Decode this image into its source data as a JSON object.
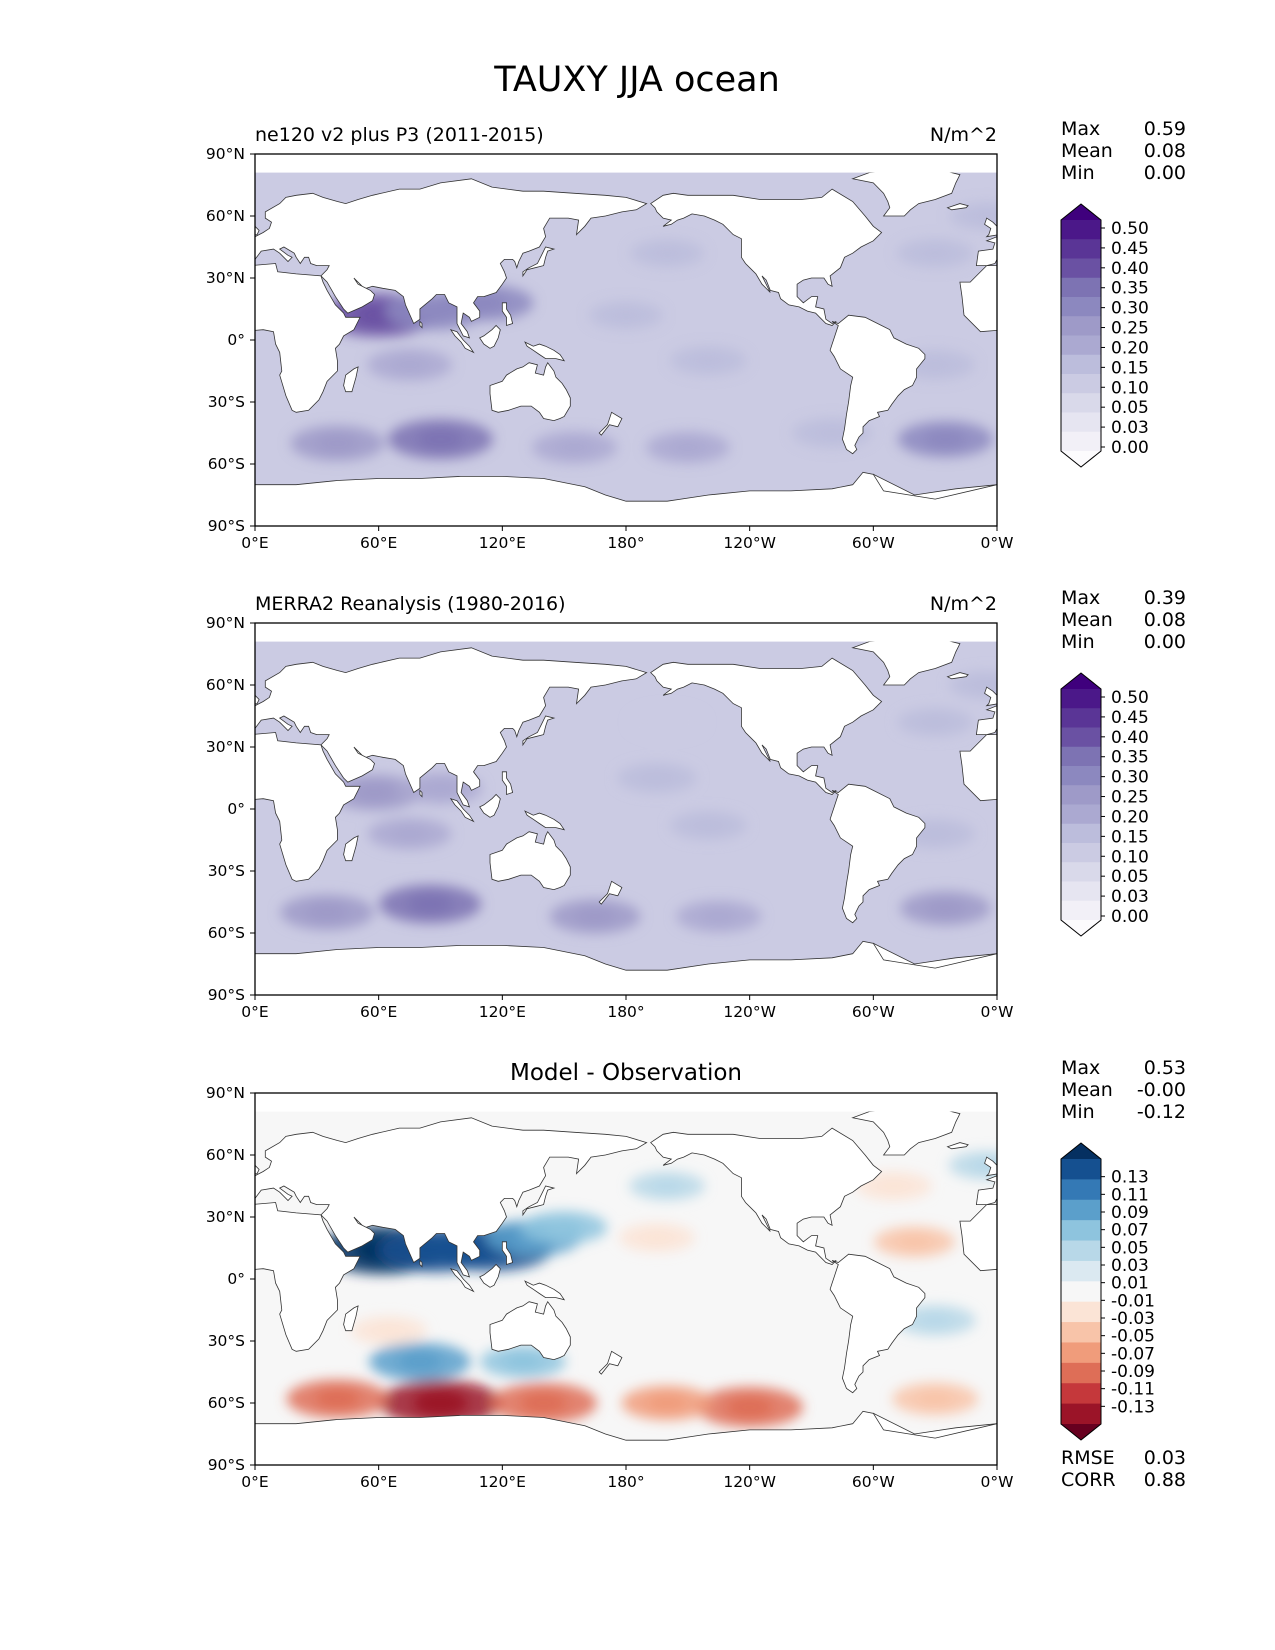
{
  "figure_title": "TAUXY JJA ocean",
  "colors": {
    "land": "#ffffff",
    "coast": "#333333",
    "frame": "#000000",
    "purples": [
      "#fcfbfd",
      "#f2f0f7",
      "#e6e5f1",
      "#d9d9ea",
      "#cbcbe3",
      "#bcbddc",
      "#aba9d1",
      "#9e9ac8",
      "#8c88bf",
      "#7d73b3",
      "#6a51a3",
      "#5a3596",
      "#4b1889",
      "#3f007d"
    ],
    "rdbu": [
      "#67001f",
      "#9b1428",
      "#c5383b",
      "#de6e57",
      "#f09c7b",
      "#f8c4a9",
      "#fbe4d6",
      "#f7f7f7",
      "#dbe9f1",
      "#b8d8e8",
      "#8ec4de",
      "#5b9fcb",
      "#3479b5",
      "#155090",
      "#053061"
    ]
  },
  "panels": [
    {
      "id": "test",
      "left_title": "ne120 v2 plus P3 (2011-2015)",
      "center_title": "",
      "right_title": "N/m^2",
      "stats": [
        {
          "label": "Max",
          "value": "0.59"
        },
        {
          "label": "Mean",
          "value": "0.08"
        },
        {
          "label": "Min",
          "value": "0.00"
        }
      ],
      "cbar_palette": "purples",
      "cbar_levels": [
        "0.50",
        "0.45",
        "0.40",
        "0.35",
        "0.30",
        "0.25",
        "0.20",
        "0.15",
        "0.10",
        "0.05",
        "0.03",
        "0.00"
      ],
      "extra_stats": []
    },
    {
      "id": "ref",
      "left_title": "MERRA2 Reanalysis (1980-2016)",
      "center_title": "",
      "right_title": "N/m^2",
      "stats": [
        {
          "label": "Max",
          "value": "0.39"
        },
        {
          "label": "Mean",
          "value": "0.08"
        },
        {
          "label": "Min",
          "value": "0.00"
        }
      ],
      "cbar_palette": "purples",
      "cbar_levels": [
        "0.50",
        "0.45",
        "0.40",
        "0.35",
        "0.30",
        "0.25",
        "0.20",
        "0.15",
        "0.10",
        "0.05",
        "0.03",
        "0.00"
      ],
      "extra_stats": []
    },
    {
      "id": "diff",
      "left_title": "",
      "center_title": "Model - Observation",
      "right_title": "",
      "stats": [
        {
          "label": "Max",
          "value": "0.53"
        },
        {
          "label": "Mean",
          "value": "-0.00"
        },
        {
          "label": "Min",
          "value": "-0.12"
        }
      ],
      "cbar_palette": "rdbu",
      "cbar_levels": [
        "0.13",
        "0.11",
        "0.09",
        "0.07",
        "0.05",
        "0.03",
        "0.01",
        "-0.01",
        "-0.03",
        "-0.05",
        "-0.07",
        "-0.09",
        "-0.11",
        "-0.13"
      ],
      "extra_stats": [
        {
          "label": "RMSE",
          "value": "0.03"
        },
        {
          "label": "CORR",
          "value": "0.88"
        }
      ]
    }
  ],
  "chart_data": [
    {
      "type": "heatmap",
      "title": "ne120 v2 plus P3 (2011-2015)",
      "units": "N/m^2",
      "x_ticks": [
        "0°E",
        "60°E",
        "120°E",
        "180°",
        "120°W",
        "60°W",
        "0°W"
      ],
      "y_ticks": [
        "90°N",
        "60°N",
        "30°N",
        "0°",
        "30°S",
        "60°S",
        "90°S"
      ],
      "xlim": [
        0,
        360
      ],
      "ylim": [
        -90,
        90
      ],
      "stats": {
        "max": 0.59,
        "mean": 0.08,
        "min": 0.0
      },
      "levels": [
        0.0,
        0.03,
        0.05,
        0.1,
        0.15,
        0.2,
        0.25,
        0.3,
        0.35,
        0.4,
        0.45,
        0.5
      ],
      "features": [
        {
          "lon": 60,
          "lat": 12,
          "value": 0.38
        },
        {
          "lon": 87,
          "lat": 14,
          "value": 0.28
        },
        {
          "lon": 112,
          "lat": 18,
          "value": 0.25
        },
        {
          "lon": 90,
          "lat": -48,
          "value": 0.32
        },
        {
          "lon": 40,
          "lat": -50,
          "value": 0.24
        },
        {
          "lon": 155,
          "lat": -52,
          "value": 0.18
        },
        {
          "lon": 210,
          "lat": -52,
          "value": 0.17
        },
        {
          "lon": 335,
          "lat": -48,
          "value": 0.25
        },
        {
          "lon": 280,
          "lat": -45,
          "value": 0.14
        },
        {
          "lon": 75,
          "lat": -12,
          "value": 0.18
        },
        {
          "lon": 220,
          "lat": -10,
          "value": 0.12
        },
        {
          "lon": 330,
          "lat": -12,
          "value": 0.14
        },
        {
          "lon": 180,
          "lat": 12,
          "value": 0.1
        },
        {
          "lon": 200,
          "lat": 42,
          "value": 0.1
        },
        {
          "lon": 330,
          "lat": 42,
          "value": 0.12
        },
        {
          "lon": 355,
          "lat": 60,
          "value": 0.1
        }
      ]
    },
    {
      "type": "heatmap",
      "title": "MERRA2 Reanalysis (1980-2016)",
      "units": "N/m^2",
      "x_ticks": [
        "0°E",
        "60°E",
        "120°E",
        "180°",
        "120°W",
        "60°W",
        "0°W"
      ],
      "y_ticks": [
        "90°N",
        "60°N",
        "30°N",
        "0°",
        "30°S",
        "60°S",
        "90°S"
      ],
      "xlim": [
        0,
        360
      ],
      "ylim": [
        -90,
        90
      ],
      "stats": {
        "max": 0.39,
        "mean": 0.08,
        "min": 0.0
      },
      "levels": [
        0.0,
        0.03,
        0.05,
        0.1,
        0.15,
        0.2,
        0.25,
        0.3,
        0.35,
        0.4,
        0.45,
        0.5
      ],
      "features": [
        {
          "lon": 58,
          "lat": 8,
          "value": 0.24
        },
        {
          "lon": 90,
          "lat": 10,
          "value": 0.17
        },
        {
          "lon": 85,
          "lat": -46,
          "value": 0.3
        },
        {
          "lon": 35,
          "lat": -50,
          "value": 0.24
        },
        {
          "lon": 165,
          "lat": -52,
          "value": 0.22
        },
        {
          "lon": 225,
          "lat": -52,
          "value": 0.18
        },
        {
          "lon": 335,
          "lat": -48,
          "value": 0.22
        },
        {
          "lon": 75,
          "lat": -12,
          "value": 0.17
        },
        {
          "lon": 220,
          "lat": -8,
          "value": 0.12
        },
        {
          "lon": 330,
          "lat": -12,
          "value": 0.14
        },
        {
          "lon": 195,
          "lat": 15,
          "value": 0.14
        },
        {
          "lon": 200,
          "lat": 42,
          "value": 0.09
        },
        {
          "lon": 330,
          "lat": 42,
          "value": 0.11
        },
        {
          "lon": 355,
          "lat": 60,
          "value": 0.11
        }
      ]
    },
    {
      "type": "heatmap",
      "title": "Model - Observation",
      "x_ticks": [
        "0°E",
        "60°E",
        "120°E",
        "180°",
        "120°W",
        "60°W",
        "0°W"
      ],
      "y_ticks": [
        "90°N",
        "60°N",
        "30°N",
        "0°",
        "30°S",
        "60°S",
        "90°S"
      ],
      "xlim": [
        0,
        360
      ],
      "ylim": [
        -90,
        90
      ],
      "stats": {
        "max": 0.53,
        "mean": -0.0,
        "min": -0.12,
        "rmse": 0.03,
        "corr": 0.88
      },
      "levels": [
        -0.13,
        -0.11,
        -0.09,
        -0.07,
        -0.05,
        -0.03,
        -0.01,
        0.01,
        0.03,
        0.05,
        0.07,
        0.09,
        0.11,
        0.13
      ],
      "features": [
        {
          "lon": 62,
          "lat": 14,
          "value": 0.13
        },
        {
          "lon": 88,
          "lat": 14,
          "value": 0.11
        },
        {
          "lon": 115,
          "lat": 15,
          "value": 0.12
        },
        {
          "lon": 135,
          "lat": 20,
          "value": 0.07
        },
        {
          "lon": 150,
          "lat": 25,
          "value": 0.05
        },
        {
          "lon": 80,
          "lat": -40,
          "value": 0.08
        },
        {
          "lon": 130,
          "lat": -40,
          "value": 0.05
        },
        {
          "lon": 90,
          "lat": -60,
          "value": -0.12
        },
        {
          "lon": 140,
          "lat": -60,
          "value": -0.09
        },
        {
          "lon": 40,
          "lat": -58,
          "value": -0.08
        },
        {
          "lon": 240,
          "lat": -62,
          "value": -0.09
        },
        {
          "lon": 200,
          "lat": -60,
          "value": -0.06
        },
        {
          "lon": 330,
          "lat": -58,
          "value": -0.05
        },
        {
          "lon": 195,
          "lat": 20,
          "value": -0.03
        },
        {
          "lon": 320,
          "lat": 18,
          "value": -0.04
        },
        {
          "lon": 330,
          "lat": -20,
          "value": 0.04
        },
        {
          "lon": 355,
          "lat": 55,
          "value": 0.03
        },
        {
          "lon": 200,
          "lat": 45,
          "value": 0.03
        },
        {
          "lon": 310,
          "lat": 45,
          "value": -0.03
        },
        {
          "lon": 65,
          "lat": -25,
          "value": -0.03
        }
      ]
    }
  ]
}
